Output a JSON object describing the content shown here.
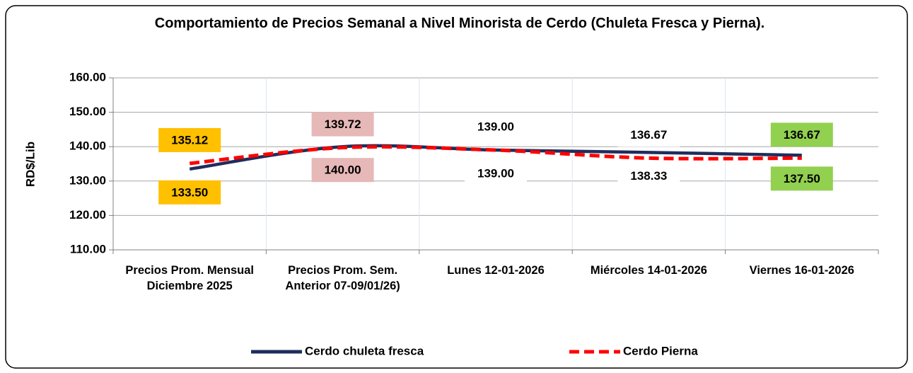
{
  "chart_data": {
    "type": "line",
    "title": "Comportamiento de Precios Semanal a Nivel Minorista de Cerdo (Chuleta Fresca y Pierna).",
    "ylabel": "RD$/Lib",
    "categories": [
      "Precios Prom. Mensual Diciembre 2025",
      "Precios Prom. Sem. Anterior 07-09/01/26)",
      "Lunes 12-01-2026",
      "Miércoles 14-01-2026",
      "Viernes 16-01-2026"
    ],
    "series": [
      {
        "name": "Cerdo chuleta fresca",
        "color": "#1f2d5c",
        "dashed": false,
        "label_side": "below",
        "values": [
          133.5,
          140,
          139,
          138.33,
          137.5
        ],
        "value_labels": [
          "133.50",
          "140.00",
          "139.00",
          "138.33",
          "137.50"
        ]
      },
      {
        "name": "Cerdo Pierna",
        "color": "#ff0000",
        "dashed": true,
        "label_side": "above",
        "values": [
          135.12,
          139.72,
          139,
          136.67,
          136.67
        ],
        "value_labels": [
          "135.12",
          "139.72",
          "139.00",
          "136.67",
          "136.67"
        ]
      }
    ],
    "label_backgrounds": [
      "#ffc000",
      "#e6b8b7",
      "#ffffff",
      "#ffffff",
      "#92d050"
    ],
    "ylim": [
      110,
      160
    ],
    "yticks": [
      {
        "value": 110,
        "label": "110.00"
      },
      {
        "value": 120,
        "label": "120.00"
      },
      {
        "value": 130,
        "label": "130.00"
      },
      {
        "value": 140,
        "label": "140.00"
      },
      {
        "value": 150,
        "label": "150.00"
      },
      {
        "value": 160,
        "label": "160.00"
      }
    ],
    "grid": true,
    "legend": "bottom"
  }
}
